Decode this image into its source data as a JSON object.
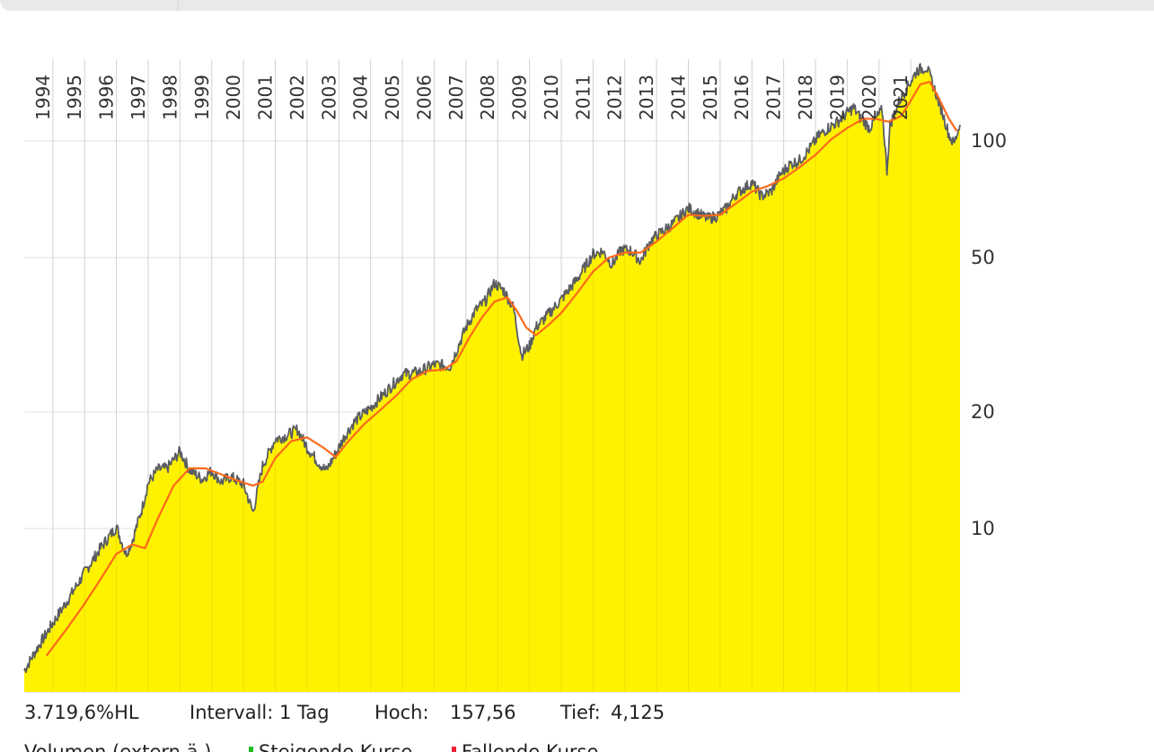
{
  "chart_data": {
    "type": "area",
    "scale": "log",
    "grid": true,
    "ylim": [
      4.125,
      157.56
    ],
    "y_ticks": [
      "100",
      "50",
      "20",
      "10"
    ],
    "y_tick_values": [
      100,
      50,
      20,
      10
    ],
    "x_ticks": [
      "1994",
      "1995",
      "1996",
      "1997",
      "1998",
      "1999",
      "2000",
      "2001",
      "2002",
      "2003",
      "2004",
      "2005",
      "2006",
      "2007",
      "2008",
      "2009",
      "2010",
      "2011",
      "2012",
      "2013",
      "2014",
      "2015",
      "2016",
      "2017",
      "2018",
      "2019",
      "2020",
      "2021"
    ],
    "x_range": [
      1993.1,
      2022.55
    ],
    "series": [
      {
        "kind": "price",
        "x": [
          1993.1,
          1993.5,
          1994.0,
          1994.5,
          1995.0,
          1995.5,
          1996.0,
          1996.3,
          1996.5,
          1996.8,
          1997.0,
          1997.3,
          1997.6,
          1998.0,
          1998.3,
          1998.7,
          1999.0,
          1999.3,
          1999.6,
          2000.0,
          2000.3,
          2000.6,
          2001.0,
          2001.3,
          2001.7,
          2002.0,
          2002.3,
          2002.6,
          2002.9,
          2003.2,
          2003.5,
          2004.0,
          2004.5,
          2005.0,
          2005.5,
          2006.0,
          2006.5,
          2007.0,
          2007.3,
          2007.6,
          2007.9,
          2008.2,
          2008.5,
          2008.75,
          2009.0,
          2009.2,
          2009.5,
          2010.0,
          2010.5,
          2011.0,
          2011.3,
          2011.6,
          2011.9,
          2012.2,
          2012.5,
          2012.8,
          2013.0,
          2013.5,
          2014.0,
          2014.3,
          2014.6,
          2014.9,
          2015.2,
          2015.5,
          2015.8,
          2016.0,
          2016.3,
          2016.6,
          2016.9,
          2017.2,
          2017.5,
          2017.8,
          2018.1,
          2018.4,
          2018.7,
          2019.0,
          2019.2,
          2019.4,
          2019.7,
          2019.9,
          2020.1,
          2020.25,
          2020.35,
          2020.6,
          2020.9,
          2021.2,
          2021.5,
          2021.8,
          2022.0,
          2022.2,
          2022.35,
          2022.55
        ],
        "y": [
          4.3,
          4.9,
          5.7,
          6.6,
          7.7,
          8.9,
          10.1,
          8.6,
          9.3,
          11.2,
          13.1,
          14.2,
          14.3,
          15.8,
          14.2,
          13.4,
          14.1,
          13.2,
          13.6,
          13.0,
          11.0,
          14.5,
          17.0,
          17.3,
          18.0,
          16.2,
          15.0,
          14.1,
          15.6,
          17.4,
          18.9,
          20.5,
          22.6,
          25.0,
          25.3,
          26.5,
          26.2,
          33.0,
          36.5,
          38.5,
          43.0,
          41.0,
          37.0,
          28.0,
          29.5,
          33.0,
          35.0,
          39.0,
          44.0,
          51.0,
          52.0,
          48.0,
          52.5,
          52.0,
          49.0,
          55.0,
          57.0,
          61.0,
          67.0,
          65.0,
          63.0,
          64.0,
          67.0,
          73.0,
          76.0,
          78.0,
          72.0,
          74.0,
          82.0,
          87.0,
          89.0,
          95.0,
          103.0,
          108.0,
          112.0,
          118.0,
          122.0,
          115.0,
          108.0,
          114.0,
          120.0,
          84.0,
          110.0,
          125.0,
          138.0,
          152.0,
          155.0,
          132.0,
          118.0,
          104.0,
          98.0,
          110.0
        ]
      },
      {
        "kind": "moving-average",
        "x": [
          1993.8,
          1994.5,
          1995.0,
          1995.5,
          1996.0,
          1996.5,
          1996.9,
          1997.3,
          1997.8,
          1998.3,
          1998.8,
          1999.3,
          1999.8,
          2000.3,
          2000.6,
          2001.0,
          2001.5,
          2002.0,
          2002.5,
          2002.9,
          2003.3,
          2003.8,
          2004.3,
          2004.8,
          2005.3,
          2005.8,
          2006.3,
          2006.7,
          2007.1,
          2007.5,
          2007.9,
          2008.3,
          2008.6,
          2008.9,
          2009.2,
          2009.6,
          2010.0,
          2010.5,
          2011.0,
          2011.5,
          2012.0,
          2012.5,
          2013.0,
          2013.5,
          2014.0,
          2014.5,
          2015.0,
          2015.5,
          2016.0,
          2016.5,
          2017.0,
          2017.5,
          2018.0,
          2018.5,
          2019.0,
          2019.5,
          2019.9,
          2020.3,
          2020.7,
          2021.0,
          2021.3,
          2021.6,
          2021.9,
          2022.2,
          2022.45
        ],
        "y": [
          4.7,
          5.6,
          6.4,
          7.4,
          8.6,
          9.1,
          8.9,
          10.6,
          12.9,
          14.3,
          14.3,
          13.8,
          13.3,
          12.9,
          13.2,
          15.2,
          16.8,
          17.2,
          16.2,
          15.3,
          16.8,
          18.6,
          20.2,
          22.0,
          24.3,
          25.5,
          25.7,
          27.0,
          31.0,
          35.0,
          38.5,
          39.5,
          36.5,
          33.0,
          31.5,
          33.5,
          36.0,
          40.5,
          46.0,
          50.0,
          51.5,
          51.5,
          55.0,
          59.5,
          64.5,
          64.0,
          64.5,
          69.0,
          74.0,
          76.5,
          80.0,
          85.5,
          92.0,
          101.0,
          108.0,
          114.0,
          114.0,
          112.0,
          116.0,
          127.0,
          140.0,
          142.0,
          128.0,
          114.0,
          106.0
        ]
      }
    ],
    "colors": {
      "fill": "#fff200",
      "price_line": "#5a5d62",
      "ma_line": "#ff6a1a",
      "grid": "#e2e2e2",
      "buy": "#22bb22",
      "sell": "#ee2233"
    }
  },
  "stats": {
    "performance": "3.719,6%HL",
    "interval": "Intervall: 1 Tag",
    "high_label": "Hoch:",
    "high_value": "157,56",
    "low_label": "Tief:",
    "low_value": "4,125"
  },
  "legend": {
    "volume": "Volumen (extern ä.)",
    "rising": "Steigende Kurse",
    "falling": "Fallende Kurse"
  }
}
